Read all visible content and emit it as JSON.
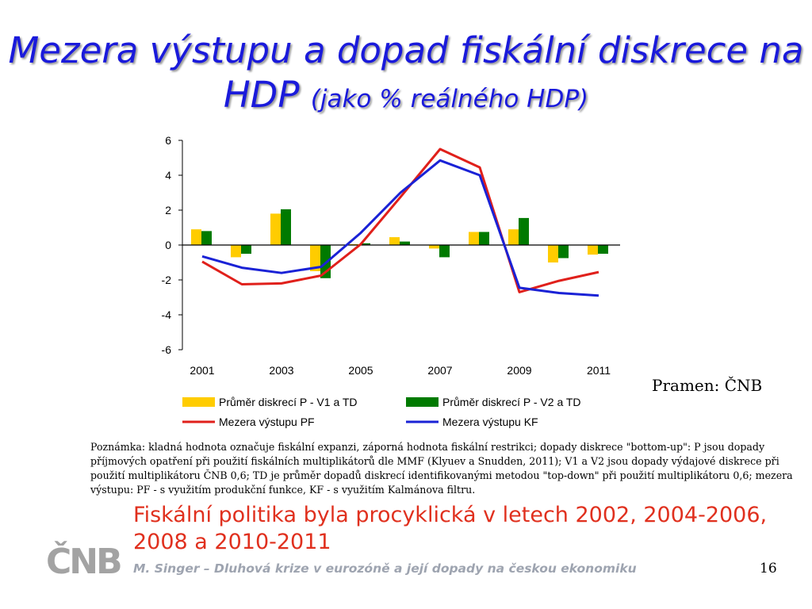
{
  "slide": {
    "title_main": "Mezera výstupu a dopad fiskální diskrece na HDP",
    "title_sub": "(jako % reálného HDP)",
    "source": "Pramen: ČNB",
    "note": "Poznámka: kladná hodnota označuje fiskální expanzi, záporná hodnota fiskální restrikci; dopady diskrece \"bottom-up\": P jsou dopady příjmových opatření při použití fiskálních multiplikátorů dle MMF (Klyuev a Snudden, 2011); V1 a V2 jsou dopady výdajové diskrece při použití multiplikátoru ČNB 0,6; TD je průměr dopadů diskrecí identifikovanými metodou \"top-down\" při použití multiplikátoru 0,6; mezera výstupu: PF - s využitím produkční funkce, KF - s využitím Kalmánova filtru.",
    "conclusion": "Fiskální politika byla procyklická v letech 2002, 2004-2006, 2008 a 2010-2011",
    "logo_text": "ČNB",
    "footer": "M. Singer – Dluhová krize v eurozóně a její dopady na českou ekonomiku",
    "page_number": "16"
  },
  "chart_data": {
    "type": "bar",
    "categories": [
      "2001",
      "2002",
      "2003",
      "2004",
      "2005",
      "2006",
      "2007",
      "2008",
      "2009",
      "2010",
      "2011"
    ],
    "x_tick_labels": [
      "2001",
      "2003",
      "2005",
      "2007",
      "2009",
      "2011"
    ],
    "y_ticks": [
      "-6",
      "-4",
      "-2",
      "0",
      "2",
      "4",
      "6"
    ],
    "ylim": [
      -6,
      6
    ],
    "legend_position": "bottom",
    "series": [
      {
        "name": "Průměr diskrecí P - V1 a TD",
        "kind": "bar",
        "color": "#ffcc00",
        "values": [
          0.9,
          -0.7,
          1.8,
          -1.5,
          0.05,
          0.45,
          -0.2,
          0.75,
          0.9,
          -1.0,
          -0.55
        ]
      },
      {
        "name": "Průměr diskrecí P - V2 a TD",
        "kind": "bar",
        "color": "#007a00",
        "values": [
          0.8,
          -0.5,
          2.05,
          -1.9,
          0.1,
          0.2,
          -0.7,
          0.75,
          1.55,
          -0.75,
          -0.5
        ]
      },
      {
        "name": "Mezera výstupu PF",
        "kind": "line",
        "color": "#e0201b",
        "values": [
          -0.95,
          -2.25,
          -2.2,
          -1.75,
          0.05,
          2.75,
          5.5,
          4.45,
          -2.7,
          -2.05,
          -1.55
        ]
      },
      {
        "name": "Mezera výstupu KF",
        "kind": "line",
        "color": "#1a22d6",
        "values": [
          -0.65,
          -1.3,
          -1.6,
          -1.25,
          0.7,
          3.0,
          4.85,
          4.0,
          -2.45,
          -2.75,
          -2.9
        ]
      }
    ]
  }
}
